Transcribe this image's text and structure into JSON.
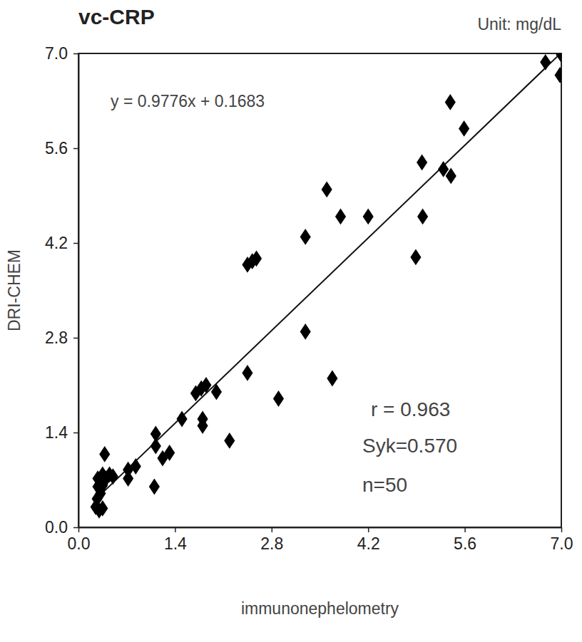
{
  "chart_data": {
    "type": "scatter",
    "title": "vc-CRP",
    "subtitle": "Unit: mg/dL",
    "x_label": "immunonephelometry",
    "y_label": "DRI-CHEM",
    "annotations": [
      "y = 0.9776x + 0.1683",
      "r = 0.963",
      "Syk=0.570",
      "n=50"
    ],
    "x": [
      6.77,
      7.0,
      6.98,
      5.39,
      5.59,
      4.98,
      5.29,
      5.4,
      4.99,
      4.89,
      3.6,
      3.8,
      4.2,
      3.29,
      2.45,
      2.52,
      2.58,
      3.29,
      3.68,
      2.45,
      2.9,
      2.19,
      2.0,
      1.85,
      1.78,
      1.7,
      1.8,
      1.8,
      1.5,
      1.32,
      1.22,
      1.12,
      1.12,
      1.1,
      0.83,
      0.72,
      0.72,
      0.25,
      0.3,
      0.35,
      0.27,
      0.32,
      0.28,
      0.35,
      0.28,
      0.4,
      0.35,
      0.45,
      0.38,
      0.5
    ],
    "y": [
      6.87,
      6.98,
      6.68,
      6.28,
      5.89,
      5.39,
      5.29,
      5.19,
      4.59,
      3.99,
      4.99,
      4.59,
      4.59,
      4.29,
      3.88,
      3.93,
      3.97,
      2.89,
      2.2,
      2.28,
      1.9,
      1.28,
      2.0,
      2.1,
      2.05,
      1.98,
      1.6,
      1.5,
      1.6,
      1.1,
      1.02,
      1.38,
      1.2,
      0.6,
      0.9,
      0.85,
      0.72,
      0.3,
      0.25,
      0.28,
      0.42,
      0.5,
      0.6,
      0.62,
      0.72,
      0.72,
      0.78,
      0.78,
      1.08,
      0.75
    ],
    "color": "#000000",
    "marker": "diamond",
    "trendline": {
      "slope": 0.9776,
      "intercept": 0.1683,
      "x": [
        0.3,
        7.0
      ]
    },
    "xlim": [
      0,
      7
    ],
    "ylim": [
      0,
      7
    ],
    "xticks": [
      {
        "value": 0,
        "label": "0.0"
      },
      1.4,
      2.8,
      4.2,
      5.6,
      {
        "value": 7,
        "label": "7.0"
      }
    ],
    "yticks": [
      {
        "value": 0,
        "label": "0.0"
      },
      1.4,
      2.8,
      4.2,
      5.6,
      {
        "value": 7,
        "label": "7.0"
      }
    ],
    "grid": false
  }
}
